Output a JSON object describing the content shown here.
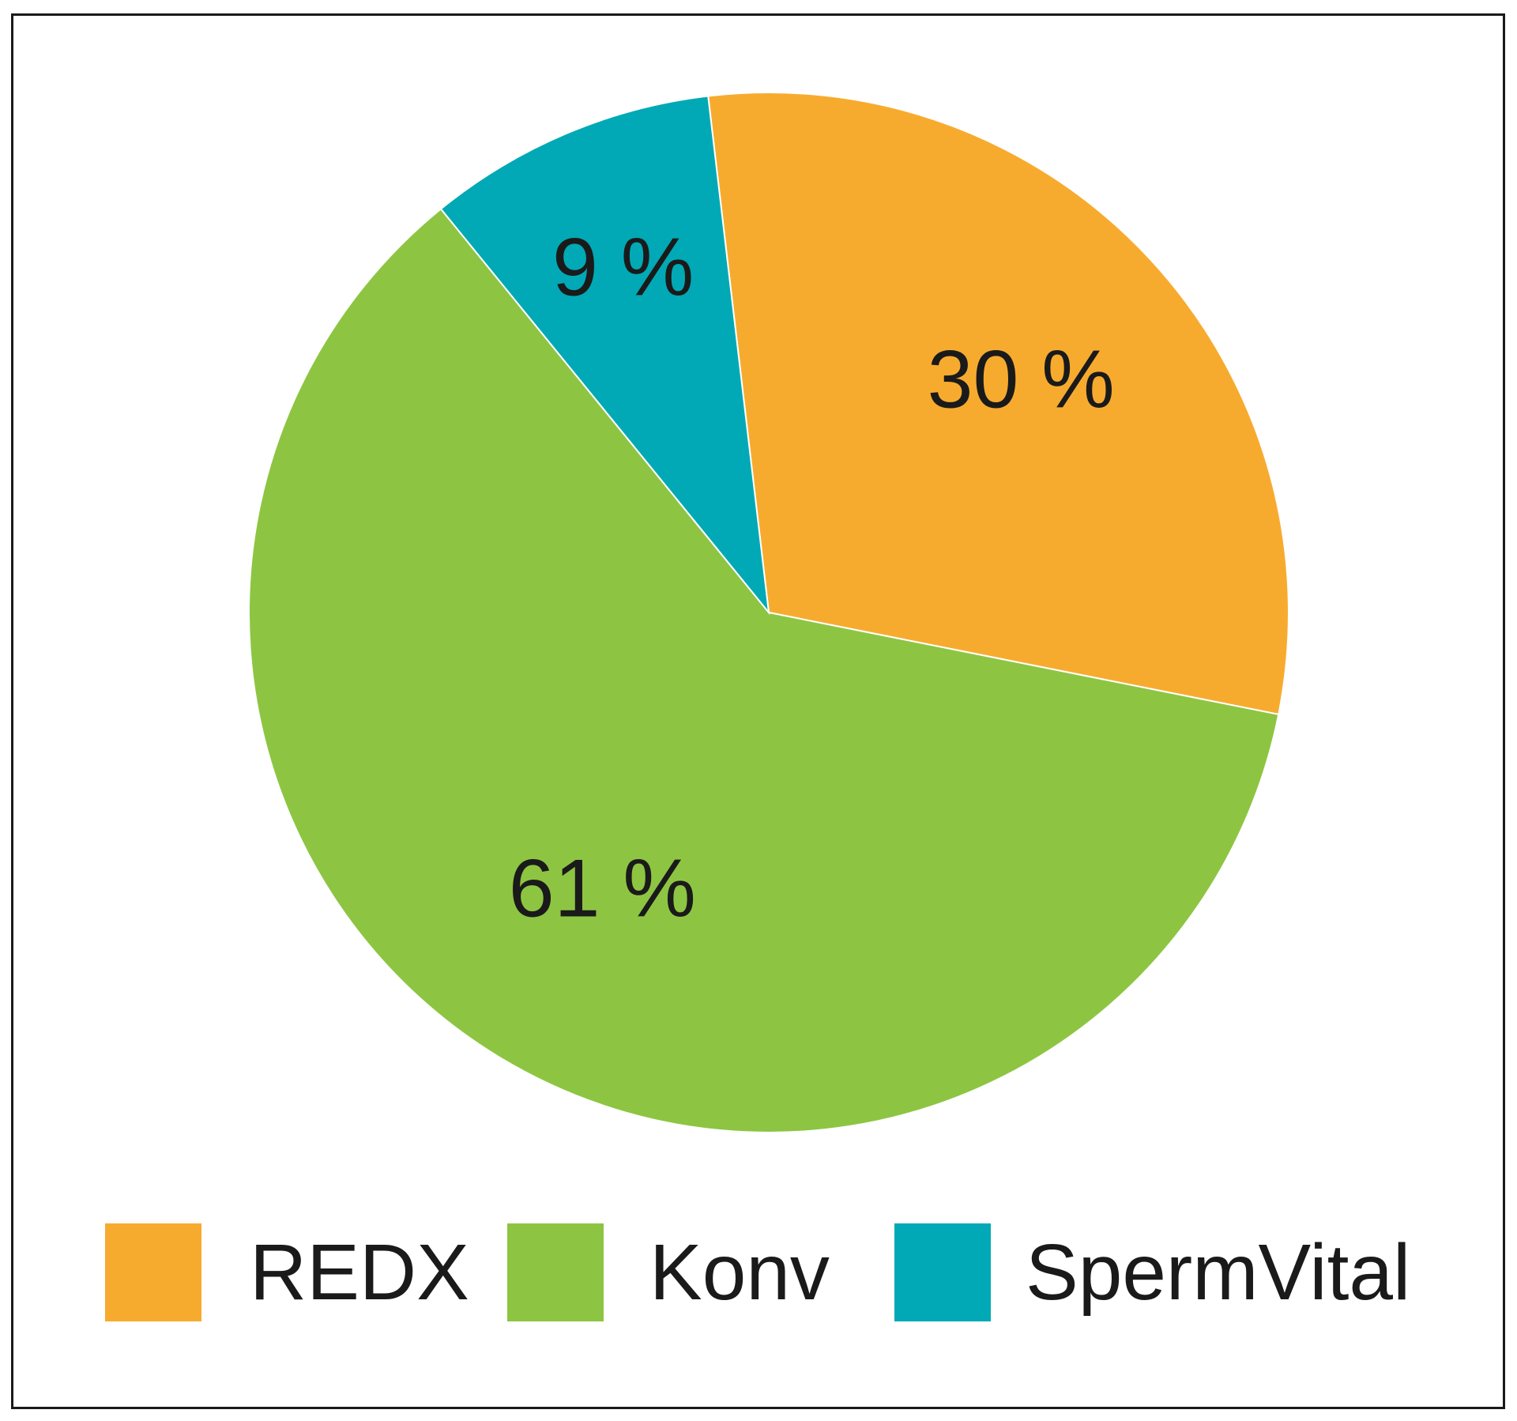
{
  "chart_data": {
    "type": "pie",
    "categories": [
      "REDX",
      "Konv",
      "SpermVital"
    ],
    "values": [
      30,
      61,
      9
    ],
    "labels": [
      "30 %",
      "61 %",
      "9 %"
    ],
    "colors": [
      "#F7AB2E",
      "#8DC542",
      "#00A9B5"
    ],
    "legend_position": "bottom",
    "start_slice": "REDX",
    "direction": "clockwise"
  }
}
